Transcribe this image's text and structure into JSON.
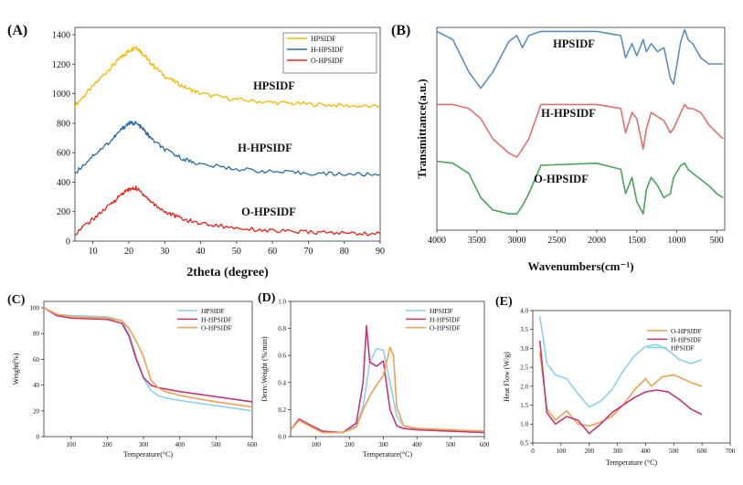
{
  "chart_data": [
    {
      "panel": "(A)",
      "type": "line",
      "xlabel": "2theta (degree)",
      "ylabel": "",
      "xlim": [
        5,
        90
      ],
      "ylim": [
        0,
        1450
      ],
      "x_ticks": [
        "10",
        "20",
        "30",
        "40",
        "50",
        "60",
        "70",
        "80",
        "90"
      ],
      "y_ticks": [
        "0",
        "200",
        "400",
        "600",
        "800",
        "1000",
        "1200",
        "1400"
      ],
      "legend_position": "top-right",
      "series": [
        {
          "name": "HPSIDF",
          "label": "HPSIDF",
          "color": "#f5b800",
          "x": [
            5,
            10,
            15,
            18,
            20,
            22,
            24,
            26,
            30,
            35,
            40,
            50,
            60,
            70,
            80,
            90
          ],
          "y": [
            920,
            1050,
            1180,
            1250,
            1290,
            1320,
            1270,
            1210,
            1120,
            1050,
            1000,
            960,
            940,
            930,
            920,
            910
          ]
        },
        {
          "name": "H-HPSIDF",
          "label": "H-HPSIDF",
          "color": "#2e6da4",
          "x": [
            5,
            10,
            15,
            18,
            20,
            22,
            24,
            26,
            30,
            35,
            40,
            50,
            60,
            70,
            80,
            90
          ],
          "y": [
            460,
            580,
            680,
            760,
            800,
            800,
            760,
            700,
            620,
            560,
            520,
            490,
            470,
            460,
            455,
            450
          ]
        },
        {
          "name": "O-HPSIDF",
          "label": "O-HPSIDF",
          "color": "#e8231a",
          "x": [
            5,
            10,
            15,
            18,
            20,
            22,
            24,
            26,
            30,
            35,
            40,
            50,
            60,
            70,
            80,
            90
          ],
          "y": [
            50,
            150,
            250,
            320,
            350,
            360,
            320,
            270,
            200,
            150,
            120,
            90,
            70,
            60,
            55,
            50
          ]
        }
      ]
    },
    {
      "panel": "(B)",
      "type": "line",
      "xlabel": "Wavenumbers(cm⁻¹)",
      "ylabel": "Transmittance(a.u.)",
      "xlim": [
        4000,
        400
      ],
      "ylim": [
        0,
        1
      ],
      "x_ticks": [
        "4000",
        "3500",
        "3000",
        "2500",
        "2000",
        "1500",
        "1000",
        "500"
      ],
      "series": [
        {
          "name": "HPSIDF",
          "label": "HPSIDF",
          "color": "#5b8fc0",
          "x": [
            4000,
            3800,
            3600,
            3450,
            3300,
            3100,
            3000,
            2930,
            2850,
            2700,
            2000,
            1700,
            1640,
            1560,
            1500,
            1420,
            1380,
            1320,
            1240,
            1160,
            1080,
            1040,
            950,
            900,
            860,
            800,
            700,
            600,
            500,
            420
          ],
          "y": [
            0.98,
            0.94,
            0.78,
            0.7,
            0.78,
            0.93,
            0.96,
            0.9,
            0.96,
            0.98,
            0.98,
            0.96,
            0.85,
            0.92,
            0.86,
            0.94,
            0.88,
            0.92,
            0.88,
            0.9,
            0.75,
            0.72,
            0.93,
            0.99,
            0.94,
            0.92,
            0.85,
            0.82,
            0.82,
            0.82
          ]
        },
        {
          "name": "H-HPSIDF",
          "label": "H-HPSIDF",
          "color": "#e07070",
          "x": [
            4000,
            3800,
            3600,
            3450,
            3300,
            3100,
            3000,
            2930,
            2850,
            2700,
            2000,
            1700,
            1640,
            1560,
            1500,
            1420,
            1380,
            1320,
            1240,
            1160,
            1080,
            1040,
            950,
            900,
            860,
            800,
            700,
            600,
            500,
            420
          ],
          "y": [
            0.62,
            0.62,
            0.6,
            0.55,
            0.45,
            0.38,
            0.36,
            0.4,
            0.45,
            0.62,
            0.62,
            0.6,
            0.48,
            0.58,
            0.55,
            0.4,
            0.5,
            0.58,
            0.56,
            0.54,
            0.48,
            0.5,
            0.58,
            0.62,
            0.6,
            0.6,
            0.58,
            0.52,
            0.48,
            0.45
          ]
        },
        {
          "name": "O-HPSIDF",
          "label": "O-HPSIDF",
          "color": "#4aa35a",
          "x": [
            4000,
            3800,
            3600,
            3450,
            3300,
            3100,
            3000,
            2930,
            2850,
            2700,
            2000,
            1700,
            1640,
            1560,
            1500,
            1420,
            1380,
            1320,
            1240,
            1160,
            1080,
            1040,
            950,
            900,
            860,
            800,
            700,
            600,
            500,
            420
          ],
          "y": [
            0.34,
            0.33,
            0.28,
            0.16,
            0.1,
            0.08,
            0.08,
            0.12,
            0.18,
            0.32,
            0.33,
            0.3,
            0.18,
            0.26,
            0.14,
            0.08,
            0.2,
            0.26,
            0.22,
            0.16,
            0.18,
            0.26,
            0.32,
            0.33,
            0.3,
            0.28,
            0.25,
            0.22,
            0.18,
            0.16
          ]
        }
      ]
    },
    {
      "panel": "(C)",
      "type": "line",
      "xlabel": "Temperature(°C)",
      "ylabel": "Weight(%)",
      "xlim": [
        25,
        600
      ],
      "ylim": [
        0,
        105
      ],
      "x_ticks": [
        "100",
        "200",
        "300",
        "400",
        "500",
        "600"
      ],
      "y_ticks": [
        "0",
        "20",
        "40",
        "60",
        "80",
        "100"
      ],
      "legend_position": "top-right",
      "series": [
        {
          "name": "HPSIDF",
          "label": "HPSIDF",
          "color": "#8ed0ec",
          "x": [
            25,
            60,
            100,
            200,
            240,
            260,
            280,
            300,
            320,
            340,
            360,
            400,
            500,
            600
          ],
          "y": [
            100,
            95,
            94,
            93,
            90,
            80,
            62,
            45,
            36,
            32,
            30,
            28,
            24,
            20
          ]
        },
        {
          "name": "H-HPSIDF",
          "label": "H-HPSIDF",
          "color": "#c0387a",
          "x": [
            25,
            60,
            100,
            200,
            240,
            260,
            280,
            300,
            320,
            340,
            360,
            400,
            500,
            600
          ],
          "y": [
            100,
            94,
            92,
            91,
            88,
            78,
            60,
            46,
            40,
            38,
            37,
            35,
            31,
            27
          ]
        },
        {
          "name": "O-HPSIDF",
          "label": "O-HPSIDF",
          "color": "#f0a050",
          "x": [
            25,
            60,
            100,
            200,
            240,
            260,
            280,
            300,
            320,
            340,
            360,
            400,
            500,
            600
          ],
          "y": [
            100,
            95,
            93,
            92,
            90,
            84,
            74,
            62,
            44,
            38,
            35,
            32,
            27,
            23
          ]
        }
      ]
    },
    {
      "panel": "(D)",
      "type": "line",
      "xlabel": "Temperature(°C)",
      "ylabel": "Deriv.Weight (%/min)",
      "xlim": [
        25,
        600
      ],
      "ylim": [
        0,
        1
      ],
      "x_ticks": [
        "100",
        "200",
        "300",
        "400",
        "500",
        "600"
      ],
      "y_ticks": [
        "0.0",
        "0.2",
        "0.4",
        "0.6",
        "0.8",
        "1.0"
      ],
      "legend_position": "top-right",
      "series": [
        {
          "name": "HPSIDF",
          "label": "HPSIDF",
          "color": "#8ed0ec",
          "x": [
            25,
            50,
            80,
            120,
            180,
            220,
            240,
            260,
            280,
            300,
            320,
            340,
            360,
            400,
            500,
            600
          ],
          "y": [
            0.05,
            0.12,
            0.08,
            0.03,
            0.03,
            0.08,
            0.22,
            0.55,
            0.65,
            0.64,
            0.4,
            0.15,
            0.08,
            0.06,
            0.05,
            0.04
          ]
        },
        {
          "name": "H-HPSIDF",
          "label": "H-HPSIDF",
          "color": "#c0387a",
          "x": [
            25,
            50,
            80,
            120,
            180,
            220,
            240,
            250,
            260,
            280,
            300,
            320,
            340,
            360,
            400,
            500,
            600
          ],
          "y": [
            0.05,
            0.13,
            0.09,
            0.04,
            0.03,
            0.1,
            0.4,
            0.82,
            0.55,
            0.52,
            0.56,
            0.2,
            0.08,
            0.06,
            0.05,
            0.04,
            0.03
          ]
        },
        {
          "name": "O-HPSIDF",
          "label": "O-HPSIDF",
          "color": "#f0a050",
          "x": [
            25,
            50,
            80,
            120,
            180,
            220,
            240,
            260,
            280,
            300,
            320,
            330,
            340,
            360,
            400,
            500,
            600
          ],
          "y": [
            0.05,
            0.12,
            0.08,
            0.03,
            0.03,
            0.07,
            0.2,
            0.3,
            0.38,
            0.45,
            0.66,
            0.6,
            0.22,
            0.08,
            0.06,
            0.05,
            0.04
          ]
        }
      ]
    },
    {
      "panel": "(E)",
      "type": "line",
      "xlabel": "Temperature (°C)",
      "ylabel": "Heat Flow (W/g)",
      "xlim": [
        0,
        700
      ],
      "ylim": [
        0.5,
        4.0
      ],
      "x_ticks": [
        "0",
        "100",
        "200",
        "300",
        "400",
        "500",
        "600",
        "700"
      ],
      "y_ticks": [
        "0.5",
        "1.0",
        "1.5",
        "2.0",
        "2.5",
        "3.0",
        "3.5",
        "4.0"
      ],
      "legend_position": "top-right",
      "series": [
        {
          "name": "O-HPSIDF",
          "label": "O-HPSIDF",
          "color": "#f0a050",
          "x": [
            25,
            50,
            80,
            120,
            160,
            200,
            240,
            280,
            320,
            360,
            400,
            420,
            460,
            500,
            560,
            600
          ],
          "y": [
            2.9,
            1.4,
            1.1,
            1.35,
            1.0,
            0.95,
            1.05,
            1.2,
            1.5,
            1.9,
            2.2,
            2.0,
            2.25,
            2.3,
            2.1,
            2.0
          ]
        },
        {
          "name": "H-HPSIDF",
          "label": "H-HPSIDF",
          "color": "#c0387a",
          "x": [
            25,
            50,
            80,
            120,
            160,
            200,
            240,
            280,
            320,
            360,
            400,
            440,
            480,
            520,
            560,
            600
          ],
          "y": [
            3.2,
            1.3,
            1.0,
            1.2,
            1.1,
            0.75,
            1.0,
            1.3,
            1.5,
            1.7,
            1.85,
            1.9,
            1.85,
            1.65,
            1.4,
            1.25
          ]
        },
        {
          "name": "HPSIDF",
          "label": "HPSIDF",
          "color": "#8ed0ec",
          "x": [
            25,
            50,
            80,
            120,
            160,
            200,
            240,
            280,
            320,
            360,
            400,
            440,
            480,
            520,
            560,
            600
          ],
          "y": [
            3.85,
            2.6,
            2.3,
            2.2,
            1.8,
            1.45,
            1.6,
            1.9,
            2.4,
            2.8,
            3.05,
            3.1,
            2.95,
            2.7,
            2.6,
            2.7
          ]
        }
      ]
    }
  ]
}
